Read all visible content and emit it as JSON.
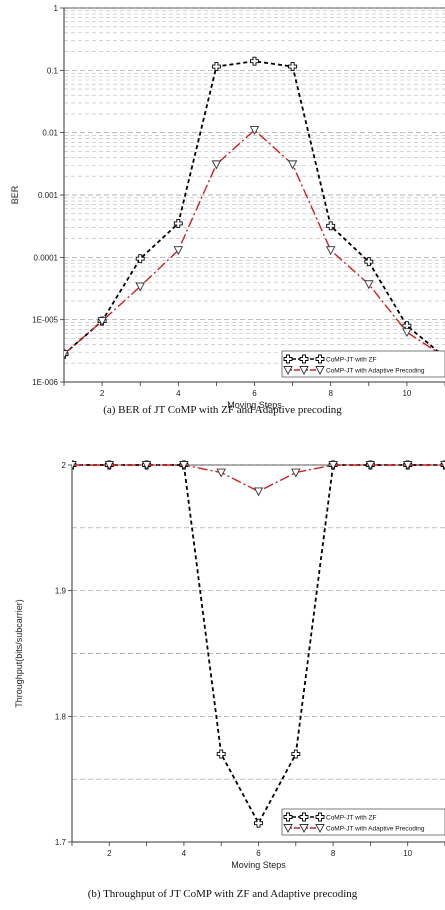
{
  "chart_data": [
    {
      "type": "line",
      "caption": "(a) BER of JT CoMP with ZF and Adaptive precoding",
      "xlabel": "Moving Steps",
      "ylabel": "BER",
      "yscale": "log",
      "xlim": [
        1,
        11
      ],
      "ylim": [
        1e-06,
        1
      ],
      "x_ticks": [
        2,
        4,
        6,
        8,
        10
      ],
      "y_ticks": [
        1,
        0.1,
        0.01,
        0.001,
        0.0001,
        1e-05,
        1e-06
      ],
      "y_tick_labels": [
        "1",
        "0.1",
        "0.01",
        "0.001",
        "0.0001",
        "1E-005",
        "1E-006"
      ],
      "grid": true,
      "legend": "bottom-right",
      "series": [
        {
          "name": "CoMP-JT with ZF",
          "color": "#000000",
          "marker": "cross",
          "x": [
            1,
            2,
            3,
            4,
            5,
            6,
            7,
            8,
            9,
            10,
            11
          ],
          "y": [
            2.8e-06,
            9.5e-06,
            9.5e-05,
            0.00035,
            0.115,
            0.14,
            0.115,
            0.00032,
            8.5e-05,
            8e-06,
            2.5e-06
          ]
        },
        {
          "name": "CoMP-JT with Adaptive Precoding",
          "color": "#cc2222",
          "marker": "triangle-down",
          "x": [
            1,
            2,
            3,
            4,
            5,
            6,
            7,
            8,
            9,
            10,
            11
          ],
          "y": [
            2.8e-06,
            9.5e-06,
            3.4e-05,
            0.00013,
            0.0031,
            0.011,
            0.0031,
            0.00013,
            3.7e-05,
            6.3e-06,
            2.5e-06
          ]
        }
      ]
    },
    {
      "type": "line",
      "caption": "(b) Throughput of JT CoMP with ZF and Adaptive precoding",
      "xlabel": "Moving Steps",
      "ylabel": "Throughput(bits/subcarrier)",
      "xlim": [
        1,
        11
      ],
      "ylim": [
        1.7,
        2
      ],
      "x_ticks": [
        2,
        4,
        6,
        8,
        10
      ],
      "y_ticks": [
        2,
        1.9,
        1.8,
        1.7
      ],
      "y_tick_labels": [
        "2",
        "1.9",
        "1.8",
        "1.7"
      ],
      "grid": true,
      "legend": "bottom-right",
      "series": [
        {
          "name": "CoMP-JT with ZF",
          "color": "#000000",
          "marker": "cross",
          "x": [
            1,
            2,
            3,
            4,
            5,
            6,
            7,
            8,
            9,
            10,
            11
          ],
          "y": [
            2,
            2,
            2,
            2,
            1.77,
            1.715,
            1.77,
            2,
            2,
            2,
            2
          ]
        },
        {
          "name": "CoMP-JT with Adaptive Precoding",
          "color": "#cc2222",
          "marker": "triangle-down",
          "x": [
            1,
            2,
            3,
            4,
            5,
            6,
            7,
            8,
            9,
            10,
            11
          ],
          "y": [
            2,
            2,
            2,
            2,
            1.994,
            1.979,
            1.994,
            2,
            2,
            2,
            2
          ]
        }
      ]
    }
  ]
}
